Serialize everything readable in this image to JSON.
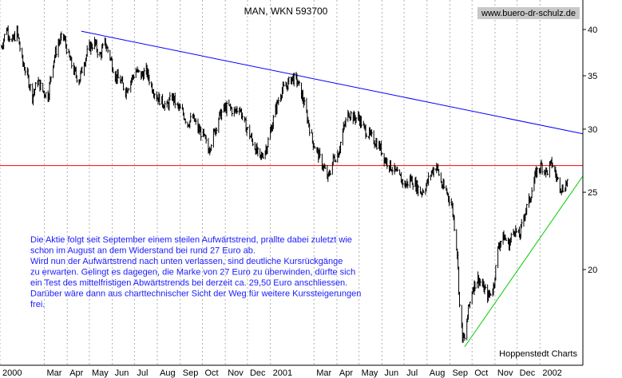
{
  "chart_data": {
    "type": "bar",
    "style": "ohlc",
    "title": "MAN, WKN 593700",
    "watermark_url": "www.buero-dr-schulz.de",
    "source_label": "Hoppenstedt Charts",
    "y_scale": "log",
    "ylim": [
      15.4,
      43
    ],
    "yticks": [
      {
        "value": 20,
        "label": "20"
      },
      {
        "value": 25,
        "label": "25"
      },
      {
        "value": 30,
        "label": "30"
      },
      {
        "value": 35,
        "label": "35"
      },
      {
        "value": 40,
        "label": "40"
      }
    ],
    "xlim": [
      "2000-01-01",
      "2002-02-28"
    ],
    "xticks": [
      {
        "date": "2000-01-01",
        "label": "2000"
      },
      {
        "date": "2000-03-01",
        "label": "Mar"
      },
      {
        "date": "2000-04-01",
        "label": "Apr"
      },
      {
        "date": "2000-05-01",
        "label": "May"
      },
      {
        "date": "2000-06-01",
        "label": "Jun"
      },
      {
        "date": "2000-07-01",
        "label": "Jul"
      },
      {
        "date": "2000-08-01",
        "label": "Aug"
      },
      {
        "date": "2000-09-01",
        "label": "Sep"
      },
      {
        "date": "2000-10-01",
        "label": "Oct"
      },
      {
        "date": "2000-11-01",
        "label": "Nov"
      },
      {
        "date": "2000-12-01",
        "label": "Dec"
      },
      {
        "date": "2001-01-01",
        "label": "2001"
      },
      {
        "date": "2001-03-01",
        "label": "Mar"
      },
      {
        "date": "2001-04-01",
        "label": "Apr"
      },
      {
        "date": "2001-05-01",
        "label": "May"
      },
      {
        "date": "2001-06-01",
        "label": "Jun"
      },
      {
        "date": "2001-07-01",
        "label": "Jul"
      },
      {
        "date": "2001-08-01",
        "label": "Aug"
      },
      {
        "date": "2001-09-01",
        "label": "Sep"
      },
      {
        "date": "2001-10-01",
        "label": "Oct"
      },
      {
        "date": "2001-11-01",
        "label": "Nov"
      },
      {
        "date": "2001-12-01",
        "label": "Dec"
      },
      {
        "date": "2002-01-01",
        "label": "2002"
      }
    ],
    "grid": {
      "vertical": "dotted",
      "horizontal": "none"
    },
    "price_path": [
      {
        "date": "2000-01-03",
        "close": 38.0
      },
      {
        "date": "2000-01-10",
        "close": 40.2
      },
      {
        "date": "2000-01-17",
        "close": 38.5
      },
      {
        "date": "2000-01-24",
        "close": 39.8
      },
      {
        "date": "2000-01-31",
        "close": 36.5
      },
      {
        "date": "2000-02-07",
        "close": 35.0
      },
      {
        "date": "2000-02-14",
        "close": 33.0
      },
      {
        "date": "2000-02-21",
        "close": 34.5
      },
      {
        "date": "2000-02-28",
        "close": 33.5
      },
      {
        "date": "2000-03-06",
        "close": 33.0
      },
      {
        "date": "2000-03-13",
        "close": 36.5
      },
      {
        "date": "2000-03-20",
        "close": 38.5
      },
      {
        "date": "2000-03-27",
        "close": 39.2
      },
      {
        "date": "2000-04-03",
        "close": 37.0
      },
      {
        "date": "2000-04-10",
        "close": 35.5
      },
      {
        "date": "2000-04-17",
        "close": 34.5
      },
      {
        "date": "2000-04-24",
        "close": 36.5
      },
      {
        "date": "2000-05-01",
        "close": 38.0
      },
      {
        "date": "2000-05-08",
        "close": 38.5
      },
      {
        "date": "2000-05-15",
        "close": 37.0
      },
      {
        "date": "2000-05-22",
        "close": 38.5
      },
      {
        "date": "2000-05-29",
        "close": 37.0
      },
      {
        "date": "2000-06-05",
        "close": 35.0
      },
      {
        "date": "2000-06-12",
        "close": 34.5
      },
      {
        "date": "2000-06-19",
        "close": 33.5
      },
      {
        "date": "2000-06-26",
        "close": 34.5
      },
      {
        "date": "2000-07-03",
        "close": 35.5
      },
      {
        "date": "2000-07-10",
        "close": 35.0
      },
      {
        "date": "2000-07-17",
        "close": 35.5
      },
      {
        "date": "2000-07-24",
        "close": 34.0
      },
      {
        "date": "2000-07-31",
        "close": 33.0
      },
      {
        "date": "2000-08-07",
        "close": 32.5
      },
      {
        "date": "2000-08-14",
        "close": 32.0
      },
      {
        "date": "2000-08-21",
        "close": 33.0
      },
      {
        "date": "2000-08-28",
        "close": 32.0
      },
      {
        "date": "2000-09-04",
        "close": 31.5
      },
      {
        "date": "2000-09-11",
        "close": 30.5
      },
      {
        "date": "2000-09-18",
        "close": 31.0
      },
      {
        "date": "2000-09-25",
        "close": 30.0
      },
      {
        "date": "2000-10-02",
        "close": 29.5
      },
      {
        "date": "2000-10-09",
        "close": 28.2
      },
      {
        "date": "2000-10-16",
        "close": 29.5
      },
      {
        "date": "2000-10-23",
        "close": 31.0
      },
      {
        "date": "2000-10-30",
        "close": 31.8
      },
      {
        "date": "2000-11-06",
        "close": 32.0
      },
      {
        "date": "2000-11-13",
        "close": 31.5
      },
      {
        "date": "2000-11-20",
        "close": 32.0
      },
      {
        "date": "2000-11-27",
        "close": 30.5
      },
      {
        "date": "2000-12-04",
        "close": 29.5
      },
      {
        "date": "2000-12-11",
        "close": 28.5
      },
      {
        "date": "2000-12-18",
        "close": 27.5
      },
      {
        "date": "2000-12-27",
        "close": 28.5
      },
      {
        "date": "2001-01-02",
        "close": 30.0
      },
      {
        "date": "2001-01-09",
        "close": 32.0
      },
      {
        "date": "2001-01-16",
        "close": 33.5
      },
      {
        "date": "2001-01-23",
        "close": 34.0
      },
      {
        "date": "2001-01-30",
        "close": 34.8
      },
      {
        "date": "2001-02-06",
        "close": 34.5
      },
      {
        "date": "2001-02-13",
        "close": 33.0
      },
      {
        "date": "2001-02-20",
        "close": 31.0
      },
      {
        "date": "2001-02-27",
        "close": 29.0
      },
      {
        "date": "2001-03-06",
        "close": 28.0
      },
      {
        "date": "2001-03-13",
        "close": 27.0
      },
      {
        "date": "2001-03-20",
        "close": 26.0
      },
      {
        "date": "2001-03-27",
        "close": 27.5
      },
      {
        "date": "2001-04-03",
        "close": 28.0
      },
      {
        "date": "2001-04-10",
        "close": 30.0
      },
      {
        "date": "2001-04-17",
        "close": 31.5
      },
      {
        "date": "2001-04-24",
        "close": 31.0
      },
      {
        "date": "2001-05-01",
        "close": 31.0
      },
      {
        "date": "2001-05-08",
        "close": 30.0
      },
      {
        "date": "2001-05-15",
        "close": 29.5
      },
      {
        "date": "2001-05-22",
        "close": 29.0
      },
      {
        "date": "2001-05-29",
        "close": 28.5
      },
      {
        "date": "2001-06-05",
        "close": 27.5
      },
      {
        "date": "2001-06-12",
        "close": 27.0
      },
      {
        "date": "2001-06-19",
        "close": 26.5
      },
      {
        "date": "2001-06-26",
        "close": 26.0
      },
      {
        "date": "2001-07-03",
        "close": 25.5
      },
      {
        "date": "2001-07-10",
        "close": 26.0
      },
      {
        "date": "2001-07-17",
        "close": 25.5
      },
      {
        "date": "2001-07-24",
        "close": 25.0
      },
      {
        "date": "2001-07-31",
        "close": 25.5
      },
      {
        "date": "2001-08-07",
        "close": 26.5
      },
      {
        "date": "2001-08-14",
        "close": 27.0
      },
      {
        "date": "2001-08-21",
        "close": 25.5
      },
      {
        "date": "2001-08-28",
        "close": 25.0
      },
      {
        "date": "2001-09-04",
        "close": 24.0
      },
      {
        "date": "2001-09-11",
        "close": 21.0
      },
      {
        "date": "2001-09-14",
        "close": 18.0
      },
      {
        "date": "2001-09-18",
        "close": 16.5
      },
      {
        "date": "2001-09-21",
        "close": 16.3
      },
      {
        "date": "2001-09-26",
        "close": 17.8
      },
      {
        "date": "2001-10-02",
        "close": 19.0
      },
      {
        "date": "2001-10-09",
        "close": 19.5
      },
      {
        "date": "2001-10-16",
        "close": 19.0
      },
      {
        "date": "2001-10-23",
        "close": 18.5
      },
      {
        "date": "2001-10-30",
        "close": 19.0
      },
      {
        "date": "2001-11-06",
        "close": 21.5
      },
      {
        "date": "2001-11-13",
        "close": 22.0
      },
      {
        "date": "2001-11-20",
        "close": 21.5
      },
      {
        "date": "2001-11-27",
        "close": 22.5
      },
      {
        "date": "2001-12-04",
        "close": 22.0
      },
      {
        "date": "2001-12-11",
        "close": 23.5
      },
      {
        "date": "2001-12-18",
        "close": 24.5
      },
      {
        "date": "2001-12-27",
        "close": 26.5
      },
      {
        "date": "2002-01-03",
        "close": 27.0
      },
      {
        "date": "2002-01-10",
        "close": 26.5
      },
      {
        "date": "2002-01-17",
        "close": 27.2
      },
      {
        "date": "2002-01-24",
        "close": 26.0
      },
      {
        "date": "2002-01-31",
        "close": 25.2
      },
      {
        "date": "2002-02-07",
        "close": 25.8
      }
    ],
    "trendlines": [
      {
        "kind": "downtrend",
        "color": "#0000ff",
        "from": {
          "date": "2000-04-20",
          "value": 39.8
        },
        "to": {
          "date": "2002-02-28",
          "value": 29.6
        }
      },
      {
        "kind": "resistance",
        "color": "#ff0000",
        "from": {
          "date": "2000-01-01",
          "value": 27.0
        },
        "to": {
          "date": "2002-02-28",
          "value": 27.0
        }
      },
      {
        "kind": "uptrend",
        "color": "#00cc00",
        "from": {
          "date": "2001-09-21",
          "value": 16.0
        },
        "to": {
          "date": "2002-02-28",
          "value": 26.2
        }
      }
    ],
    "annotation": [
      "Die Aktie folgt seit September einem steilen Aufwärtstrend, prallte dabei zuletzt wie",
      "schon im August an dem Widerstand bei rund 27 Euro ab.",
      "Wird nun der Aufwärtstrend nach unten verlassen, sind deutliche Kursrückgänge",
      "zu erwarten. Gelingt es dagegen, die Marke von 27 Euro zu überwinden, dürfte sich",
      "ein Test des mittelfristigen Abwärtstrends bei derzeit ca. 29,50 Euro anschliessen.",
      "Darüber wäre dann aus charttechnischer Sicht der Weg für weitere Kurssteigerungen",
      "frei."
    ],
    "colors": {
      "bars": "#000000",
      "annotation_text": "#1a1aff",
      "grid": "#b0b0b0"
    }
  }
}
